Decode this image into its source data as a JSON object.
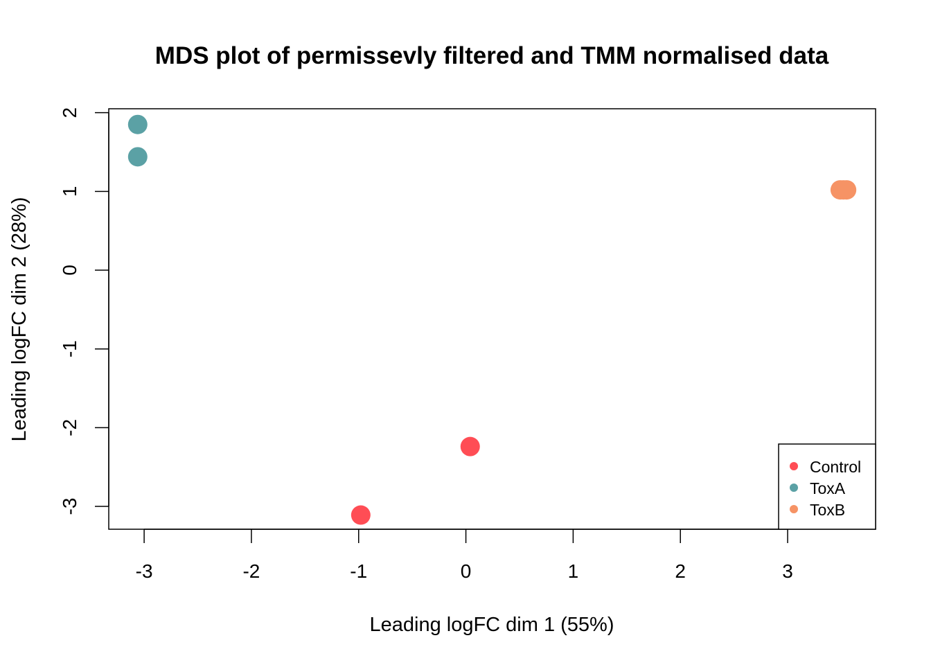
{
  "chart_data": {
    "type": "scatter",
    "title": "MDS plot of permissevly filtered and TMM normalised data",
    "xlabel": "Leading logFC dim 1 (55%)",
    "ylabel": "Leading logFC dim 2 (28%)",
    "xlim": [
      -3.33,
      3.82
    ],
    "ylim": [
      -3.29,
      2.05
    ],
    "x_ticks": [
      -3,
      -2,
      -1,
      0,
      1,
      2,
      3
    ],
    "y_ticks": [
      -3,
      -2,
      -1,
      0,
      1,
      2
    ],
    "x_tick_labels": [
      "-3",
      "-2",
      "-1",
      "0",
      "1",
      "2",
      "3"
    ],
    "y_tick_labels": [
      "-3",
      "-2",
      "-1",
      "0",
      "1",
      "2"
    ],
    "grid": false,
    "legend_position": "bottom-right",
    "series": [
      {
        "name": "Control",
        "color": "#FF4D55",
        "points": [
          {
            "x": 0.04,
            "y": -2.24
          },
          {
            "x": -0.98,
            "y": -3.11
          }
        ]
      },
      {
        "name": "ToxA",
        "color": "#5BA1A5",
        "points": [
          {
            "x": -3.06,
            "y": 1.85
          },
          {
            "x": -3.06,
            "y": 1.44
          }
        ]
      },
      {
        "name": "ToxB",
        "color": "#F69365",
        "points": [
          {
            "x": 3.49,
            "y": 1.02
          },
          {
            "x": 3.52,
            "y": 1.02
          },
          {
            "x": 3.55,
            "y": 1.02
          }
        ]
      }
    ]
  }
}
